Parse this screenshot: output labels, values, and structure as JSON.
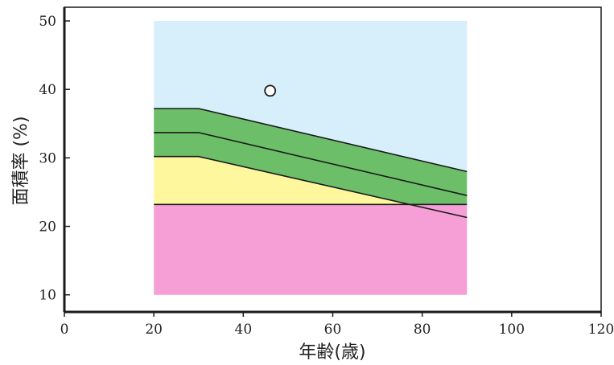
{
  "chart_data": {
    "type": "area",
    "title": "",
    "xlabel": "年齢(歳)",
    "ylabel": "面積率 (%)",
    "xlim": [
      0,
      120
    ],
    "ylim": [
      7.5,
      52
    ],
    "x_ticks": [
      0,
      20,
      40,
      60,
      80,
      100,
      120
    ],
    "y_ticks": [
      10,
      20,
      30,
      40,
      50
    ],
    "grid": false,
    "legend": "none",
    "regions": [
      {
        "label": "",
        "color": "#f59fd6",
        "x_range": [
          20,
          90
        ],
        "lower": [
          [
            20,
            10
          ],
          [
            90,
            10
          ]
        ],
        "upper": [
          [
            20,
            23.2
          ],
          [
            90,
            23.2
          ]
        ]
      },
      {
        "label": "",
        "color": "#fff79e",
        "x_range": [
          20,
          90
        ],
        "lower": [
          [
            20,
            23.2
          ],
          [
            77.5,
            23.2
          ]
        ],
        "upper": [
          [
            20,
            30.2
          ],
          [
            30,
            30.2
          ],
          [
            77.5,
            23.2
          ]
        ]
      },
      {
        "label": "",
        "color": "#6cbf68",
        "x_range": [
          20,
          90
        ],
        "lower": [
          [
            20,
            30.2
          ],
          [
            30,
            30.2
          ],
          [
            77.5,
            23.2
          ],
          [
            90,
            23.2
          ]
        ],
        "upper": [
          [
            20,
            37.2
          ],
          [
            30,
            37.2
          ],
          [
            90,
            28
          ]
        ]
      },
      {
        "label": "",
        "color": "#d6effb",
        "x_range": [
          20,
          90
        ],
        "lower": [
          [
            20,
            37.2
          ],
          [
            30,
            37.2
          ],
          [
            90,
            28
          ]
        ],
        "upper": [
          [
            20,
            50
          ],
          [
            90,
            50
          ]
        ]
      }
    ],
    "lines": [
      {
        "name": "",
        "points": [
          [
            20,
            37.2
          ],
          [
            30,
            37.2
          ],
          [
            90,
            28
          ]
        ]
      },
      {
        "name": "",
        "points": [
          [
            20,
            33.7
          ],
          [
            30,
            33.7
          ],
          [
            90,
            24.5
          ]
        ]
      },
      {
        "name": "",
        "points": [
          [
            20,
            30.2
          ],
          [
            30,
            30.2
          ],
          [
            90,
            21.3
          ]
        ]
      },
      {
        "name": "",
        "points": [
          [
            20,
            23.2
          ],
          [
            90,
            23.2
          ]
        ]
      }
    ],
    "markers": [
      {
        "x": 46,
        "y": 39.8,
        "symbol": "○"
      }
    ]
  }
}
